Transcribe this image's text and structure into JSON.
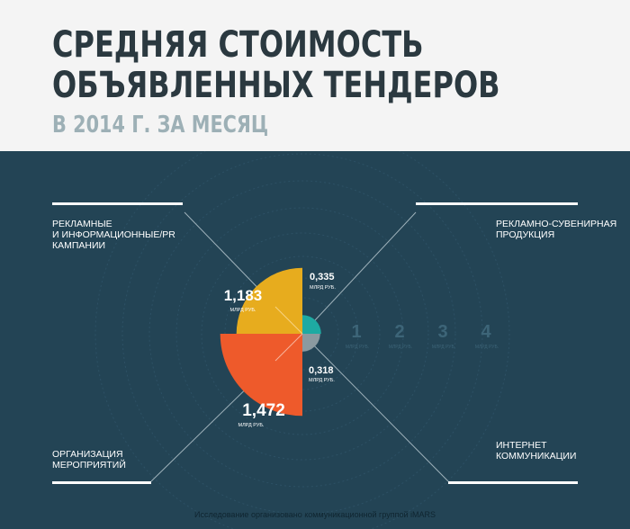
{
  "header": {
    "title_line1": "СРЕДНЯЯ СТОИМОСТЬ",
    "title_line2": "ОБЪЯВЛЕННЫХ ТЕНДЕРОВ",
    "subtitle": "В 2014 Г. ЗА МЕСЯЦ"
  },
  "categories": {
    "top_left": "РЕКЛАМНЫЕ\nИ ИНФОРМАЦИОННЫЕ/PR\nКАМПАНИИ",
    "top_right": "РЕКЛАМНО-СУВЕНИРНАЯ\nПРОДУКЦИЯ",
    "bottom_left": "ОРГАНИЗАЦИЯ\nМЕРОПРИЯТИЙ",
    "bottom_right": "ИНТЕРНЕТ\nКОММУНИКАЦИИ"
  },
  "unit_label": "МЛРД РУБ.",
  "footer": "Исследование организовано коммуникационной группой iMARS",
  "chart_data": {
    "type": "polar-area",
    "unit": "МЛРД РУБ.",
    "scale_ticks": [
      "1",
      "2",
      "3",
      "4"
    ],
    "series": [
      {
        "category": "РЕКЛАМНЫЕ И ИНФОРМАЦИОННЫЕ/PR КАМПАНИИ",
        "quadrant": "top-left",
        "value": 1.183,
        "label": "1,183",
        "color": "#e7ac1e"
      },
      {
        "category": "РЕКЛАМНО-СУВЕНИРНАЯ ПРОДУКЦИЯ",
        "quadrant": "top-right",
        "value": 0.335,
        "label": "0,335",
        "color": "#1eaaa2"
      },
      {
        "category": "ИНТЕРНЕТ КОММУНИКАЦИИ",
        "quadrant": "bottom-right",
        "value": 0.318,
        "label": "0,318",
        "color": "#8b9aa0"
      },
      {
        "category": "ОРГАНИЗАЦИЯ МЕРОПРИЯТИЙ",
        "quadrant": "bottom-left",
        "value": 1.472,
        "label": "1,472",
        "color": "#ee5a2b"
      }
    ]
  }
}
